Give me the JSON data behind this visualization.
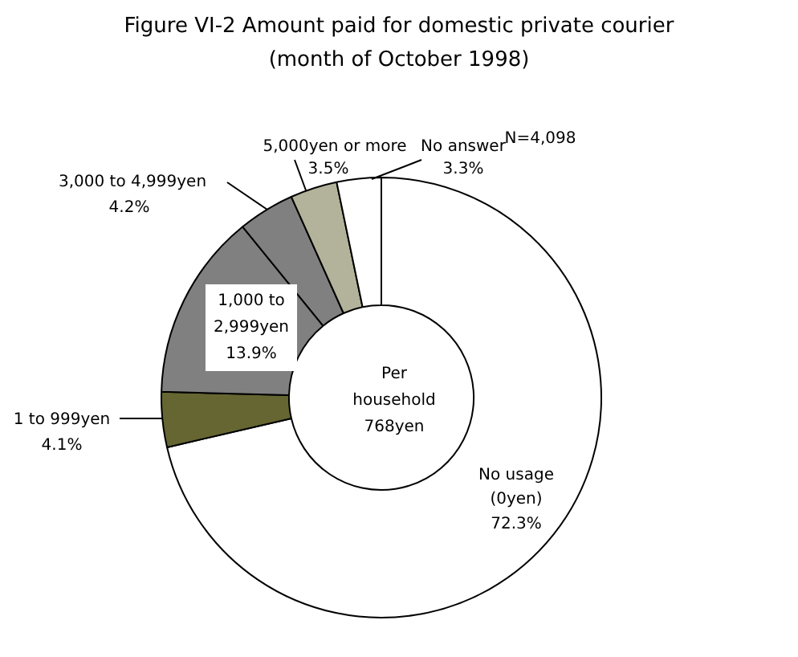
{
  "chart_data": {
    "type": "donut",
    "title": "Figure VI-2 Amount paid for domestic private courier",
    "subtitle": "(month of October 1998)",
    "categories": [
      "No usage\n(0yen)",
      "1 to 999yen",
      "1,000 to\n2,999yen",
      "3,000 to 4,999yen",
      "5,000yen or more",
      "No answer"
    ],
    "values": [
      72.3,
      4.1,
      13.9,
      4.2,
      3.5,
      3.3
    ],
    "value_labels": [
      "72.3%",
      "4.1%",
      "13.9%",
      "4.2%",
      "3.5%",
      "3.3%"
    ],
    "colors": [
      "#ffffff",
      "#666633",
      "#808080",
      "#808080",
      "#b3b39b",
      "#ffffff"
    ],
    "annotations": [
      "N=4,098",
      "Per\nhousehold\n768yen"
    ]
  }
}
